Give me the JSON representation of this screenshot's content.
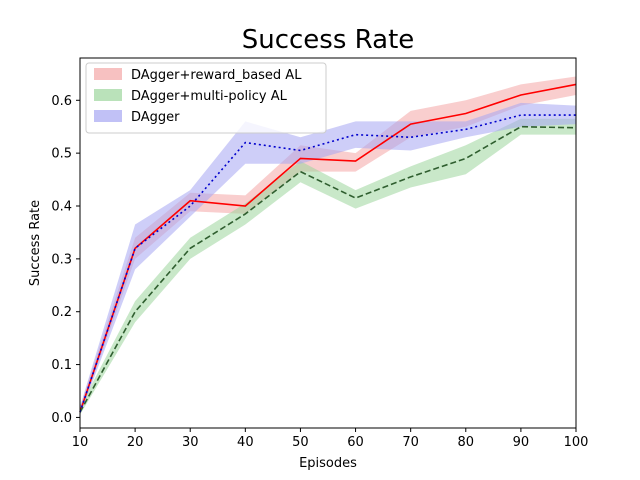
{
  "chart_data": {
    "type": "line",
    "title": "Success Rate",
    "xlabel": "Episodes",
    "ylabel": "Success Rate",
    "xlim": [
      10,
      100
    ],
    "ylim": [
      -0.02,
      0.68
    ],
    "xticks": [
      10,
      20,
      30,
      40,
      50,
      60,
      70,
      80,
      90,
      100
    ],
    "yticks": [
      0.0,
      0.1,
      0.2,
      0.3,
      0.4,
      0.5,
      0.6
    ],
    "grid": false,
    "legend_position": "top-left",
    "x": [
      10,
      20,
      30,
      40,
      50,
      60,
      70,
      80,
      90,
      100
    ],
    "series": [
      {
        "name": "DAgger+reward_based AL",
        "line_color": "#ff0000",
        "band_color": "#f4a6a6",
        "line_style": "solid",
        "values": [
          0.01,
          0.32,
          0.41,
          0.4,
          0.49,
          0.485,
          0.555,
          0.575,
          0.61,
          0.63
        ],
        "lower": [
          0.005,
          0.3,
          0.39,
          0.385,
          0.465,
          0.465,
          0.53,
          0.55,
          0.59,
          0.61
        ],
        "upper": [
          0.02,
          0.34,
          0.425,
          0.42,
          0.515,
          0.5,
          0.58,
          0.6,
          0.63,
          0.645
        ]
      },
      {
        "name": "DAgger+multi-policy AL",
        "line_color": "#2f5e2f",
        "band_color": "#9dd69d",
        "line_style": "dashed",
        "values": [
          0.01,
          0.2,
          0.32,
          0.385,
          0.465,
          0.415,
          0.455,
          0.49,
          0.55,
          0.548
        ],
        "lower": [
          0.005,
          0.18,
          0.3,
          0.365,
          0.445,
          0.395,
          0.435,
          0.46,
          0.535,
          0.535
        ],
        "upper": [
          0.02,
          0.22,
          0.34,
          0.405,
          0.485,
          0.43,
          0.475,
          0.515,
          0.565,
          0.565
        ]
      },
      {
        "name": "DAgger",
        "line_color": "#0000cc",
        "band_color": "#a6a6f2",
        "line_style": "dotted",
        "values": [
          0.01,
          0.32,
          0.4,
          0.52,
          0.505,
          0.535,
          0.53,
          0.545,
          0.572,
          0.572
        ],
        "lower": [
          0.005,
          0.28,
          0.38,
          0.48,
          0.48,
          0.51,
          0.505,
          0.53,
          0.55,
          0.555
        ],
        "upper": [
          0.02,
          0.365,
          0.43,
          0.56,
          0.53,
          0.56,
          0.56,
          0.56,
          0.595,
          0.59
        ]
      }
    ]
  }
}
